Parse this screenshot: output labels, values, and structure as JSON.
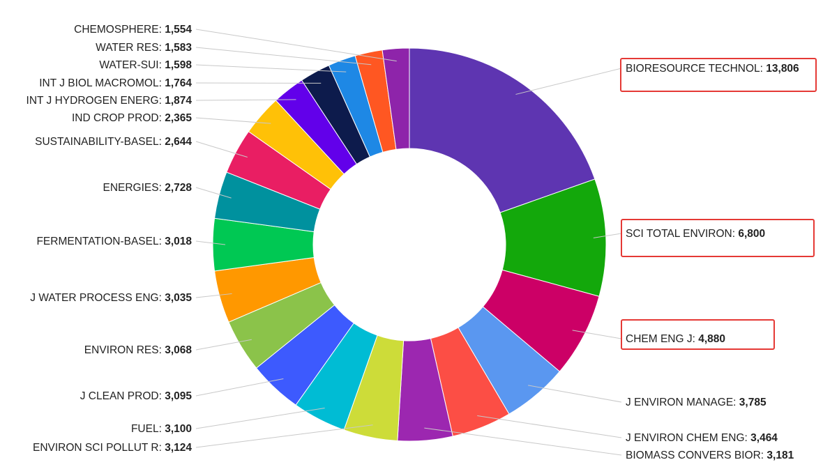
{
  "chart_data": {
    "type": "pie",
    "title": "",
    "xlabel": "",
    "ylabel": "",
    "start_angle_deg": 0,
    "direction": "clockwise",
    "slices": [
      {
        "label": "BIORESOURCE TECHNOL",
        "value": 13806,
        "value_text": "13,806",
        "color": "#5e35b1",
        "highlighted": true
      },
      {
        "label": "SCI TOTAL ENVIRON",
        "value": 6800,
        "value_text": "6,800",
        "color": "#13a80b",
        "highlighted": true
      },
      {
        "label": "CHEM ENG J",
        "value": 4880,
        "value_text": "4,880",
        "color": "#cc0066",
        "highlighted": true
      },
      {
        "label": "J ENVIRON MANAGE",
        "value": 3785,
        "value_text": "3,785",
        "color": "#5a97f0",
        "highlighted": false
      },
      {
        "label": "J ENVIRON CHEM ENG",
        "value": 3464,
        "value_text": "3,464",
        "color": "#fc4e45",
        "highlighted": false
      },
      {
        "label": "BIOMASS CONVERS BIOR",
        "value": 3181,
        "value_text": "3,181",
        "color": "#9c27b0",
        "highlighted": false
      },
      {
        "label": "ENVIRON SCI POLLUT R",
        "value": 3124,
        "value_text": "3,124",
        "color": "#cddc39",
        "highlighted": false
      },
      {
        "label": "FUEL",
        "value": 3100,
        "value_text": "3,100",
        "color": "#00bcd4",
        "highlighted": false
      },
      {
        "label": "J CLEAN PROD",
        "value": 3095,
        "value_text": "3,095",
        "color": "#3d5afe",
        "highlighted": false
      },
      {
        "label": "ENVIRON RES",
        "value": 3068,
        "value_text": "3,068",
        "color": "#8bc34a",
        "highlighted": false
      },
      {
        "label": "J WATER PROCESS ENG",
        "value": 3035,
        "value_text": "3,035",
        "color": "#ff9800",
        "highlighted": false
      },
      {
        "label": "FERMENTATION-BASEL",
        "value": 3018,
        "value_text": "3,018",
        "color": "#00c853",
        "highlighted": false
      },
      {
        "label": "ENERGIES",
        "value": 2728,
        "value_text": "2,728",
        "color": "#00919e",
        "highlighted": false
      },
      {
        "label": "SUSTAINABILITY-BASEL",
        "value": 2644,
        "value_text": "2,644",
        "color": "#e91e63",
        "highlighted": false
      },
      {
        "label": "IND CROP PROD",
        "value": 2365,
        "value_text": "2,365",
        "color": "#ffc107",
        "highlighted": false
      },
      {
        "label": "INT J HYDROGEN ENERG",
        "value": 1874,
        "value_text": "1,874",
        "color": "#6200ea",
        "highlighted": false
      },
      {
        "label": "INT J BIOL MACROMOL",
        "value": 1764,
        "value_text": "1,764",
        "color": "#0d1b4c",
        "highlighted": false
      },
      {
        "label": "WATER-SUI",
        "value": 1598,
        "value_text": "1,598",
        "color": "#1e88e5",
        "highlighted": false
      },
      {
        "label": "WATER RES",
        "value": 1583,
        "value_text": "1,583",
        "color": "#ff5722",
        "highlighted": false
      },
      {
        "label": "CHEMOSPHERE",
        "value": 1554,
        "value_text": "1,554",
        "color": "#8e24aa",
        "highlighted": false
      }
    ]
  },
  "colors": {
    "label_text": "#222222",
    "leader_line": "#c8c8c8",
    "highlight_box": "#e53935",
    "background": "#ffffff"
  }
}
